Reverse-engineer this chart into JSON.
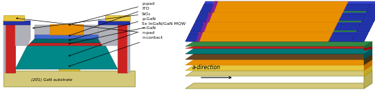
{
  "bg_color": "#ffffff",
  "substrate_color": "#d4c87a",
  "n_contact_color": "#e8c840",
  "n_gan_color": "#008888",
  "mqw_color": "#cc2222",
  "p_gan_color": "#006666",
  "sio2_color": "#b0b0b8",
  "ito_color": "#4466cc",
  "p_pad_color": "#e89000",
  "red_strip_color": "#cc2222",
  "dark_blue_color": "#2233aa",
  "green_layer_color": "#226633",
  "green_top_color": "#338844",
  "orange_color": "#e89000",
  "yellow_color": "#e8c840",
  "tan_color": "#d4c87a",
  "red_color": "#cc2222",
  "teal_color": "#007777",
  "brown_color": "#664422",
  "purple_color": "#6644aa",
  "labels": [
    "p-pad",
    "ITO",
    "SiO₂",
    "p-GaN",
    "5x InGaN/GaN MQW",
    "n-GaN",
    "n-pad",
    "n-contact"
  ],
  "substrate_label": "(20̄1) GaN substrate",
  "a_direction_label": "a-direction"
}
